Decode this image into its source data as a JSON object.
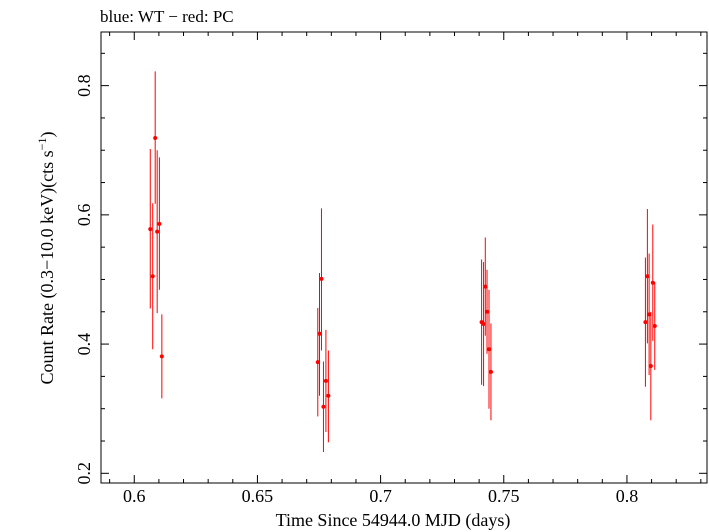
{
  "chart_data": {
    "type": "scatter",
    "title": "blue: WT − red: PC",
    "xlabel": "Time Since 54944.0 MJD (days)",
    "ylabel": "Count Rate (0.3−10.0 keV)(cts s",
    "ylabel_sup": "−1",
    "ylabel_end": ")",
    "xlim": [
      0.5865,
      0.8325
    ],
    "ylim": [
      0.185,
      0.883
    ],
    "x_ticks": [
      0.6,
      0.65,
      0.7,
      0.75,
      0.8
    ],
    "x_tick_labels": [
      "0.6",
      "0.65",
      "0.7",
      "0.75",
      "0.8"
    ],
    "y_ticks": [
      0.2,
      0.4,
      0.6,
      0.8
    ],
    "y_tick_labels": [
      "0.2",
      "0.4",
      "0.6",
      "0.8"
    ],
    "grid": false,
    "series": [
      {
        "name": "PC",
        "color": "#ff0000",
        "points": [
          {
            "x": 0.6065,
            "y": 0.578,
            "ylo": 0.455,
            "yhi": 0.702
          },
          {
            "x": 0.6075,
            "y": 0.505,
            "ylo": 0.392,
            "yhi": 0.618
          },
          {
            "x": 0.6085,
            "y": 0.719,
            "ylo": 0.617,
            "yhi": 0.822
          },
          {
            "x": 0.6093,
            "y": 0.574,
            "ylo": 0.448,
            "yhi": 0.7
          },
          {
            "x": 0.6102,
            "y": 0.586,
            "ylo": 0.484,
            "yhi": 0.689
          },
          {
            "x": 0.6112,
            "y": 0.381,
            "ylo": 0.316,
            "yhi": 0.446
          },
          {
            "x": 0.6745,
            "y": 0.372,
            "ylo": 0.288,
            "yhi": 0.456
          },
          {
            "x": 0.6752,
            "y": 0.416,
            "ylo": 0.32,
            "yhi": 0.51
          },
          {
            "x": 0.676,
            "y": 0.501,
            "ylo": 0.39,
            "yhi": 0.61
          },
          {
            "x": 0.6768,
            "y": 0.303,
            "ylo": 0.233,
            "yhi": 0.373
          },
          {
            "x": 0.6778,
            "y": 0.343,
            "ylo": 0.264,
            "yhi": 0.422
          },
          {
            "x": 0.6788,
            "y": 0.32,
            "ylo": 0.248,
            "yhi": 0.39
          },
          {
            "x": 0.741,
            "y": 0.434,
            "ylo": 0.337,
            "yhi": 0.531
          },
          {
            "x": 0.7418,
            "y": 0.431,
            "ylo": 0.335,
            "yhi": 0.527
          },
          {
            "x": 0.7425,
            "y": 0.489,
            "ylo": 0.413,
            "yhi": 0.565
          },
          {
            "x": 0.7432,
            "y": 0.45,
            "ylo": 0.385,
            "yhi": 0.515
          },
          {
            "x": 0.744,
            "y": 0.392,
            "ylo": 0.3,
            "yhi": 0.484
          },
          {
            "x": 0.7448,
            "y": 0.357,
            "ylo": 0.282,
            "yhi": 0.432
          },
          {
            "x": 0.8075,
            "y": 0.434,
            "ylo": 0.334,
            "yhi": 0.534
          },
          {
            "x": 0.8083,
            "y": 0.505,
            "ylo": 0.401,
            "yhi": 0.609
          },
          {
            "x": 0.809,
            "y": 0.446,
            "ylo": 0.352,
            "yhi": 0.54
          },
          {
            "x": 0.8097,
            "y": 0.366,
            "ylo": 0.282,
            "yhi": 0.45
          },
          {
            "x": 0.8105,
            "y": 0.495,
            "ylo": 0.405,
            "yhi": 0.585
          },
          {
            "x": 0.8113,
            "y": 0.428,
            "ylo": 0.36,
            "yhi": 0.496
          }
        ]
      }
    ]
  }
}
